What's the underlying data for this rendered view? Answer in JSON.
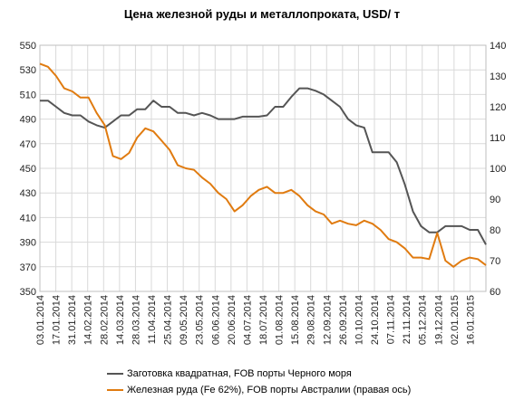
{
  "chart_data": {
    "type": "line",
    "title": "Цена железной руды и металлопроката, USD/ т",
    "left_axis": {
      "ylim": [
        350,
        550
      ],
      "ticks": [
        350,
        370,
        390,
        410,
        430,
        450,
        470,
        490,
        510,
        530,
        550
      ]
    },
    "right_axis": {
      "ylim": [
        60,
        140
      ],
      "ticks": [
        60,
        70,
        80,
        90,
        100,
        110,
        120,
        130,
        140
      ]
    },
    "x_tick_labels": [
      "03.01.2014",
      "17.01.2014",
      "31.01.2014",
      "14.02.2014",
      "28.02.2014",
      "14.03.2014",
      "28.03.2014",
      "11.04.2014",
      "25.04.2014",
      "09.05.2014",
      "23.05.2014",
      "06.06.2014",
      "20.06.2014",
      "04.07.2014",
      "18.07.2014",
      "01.08.2014",
      "15.08.2014",
      "29.08.2014",
      "12.09.2014",
      "26.09.2014",
      "10.10.2014",
      "24.10.2014",
      "07.11.2014",
      "21.11.2014",
      "05.12.2014",
      "19.12.2014",
      "02.01.2015",
      "16.01.2015"
    ],
    "grid": true,
    "legend_position": "bottom",
    "series": [
      {
        "name": "Заготовка квадратная, FOB порты Черного моря",
        "axis": "left",
        "color": "#555555",
        "values": [
          505,
          505,
          500,
          495,
          493,
          493,
          488,
          485,
          483,
          488,
          493,
          493,
          498,
          498,
          505,
          500,
          500,
          495,
          495,
          493,
          495,
          493,
          490,
          490,
          490,
          492,
          492,
          492,
          493,
          500,
          500,
          508,
          515,
          515,
          513,
          510,
          505,
          500,
          490,
          485,
          483,
          463,
          463,
          463,
          455,
          437,
          415,
          403,
          398,
          398,
          403,
          403,
          403,
          400,
          400,
          388
        ]
      },
      {
        "name": "Железная руда (Fe 62%), FOB порты Австралии (правая ось)",
        "axis": "right",
        "color": "#E07B10",
        "values": [
          134,
          133,
          130,
          126,
          125,
          123,
          123,
          118,
          114,
          104,
          103,
          105,
          110,
          113,
          112,
          109,
          106,
          101,
          100,
          99.5,
          97,
          95,
          92,
          90,
          86,
          88,
          91,
          93,
          94,
          92,
          92,
          93,
          91,
          88,
          86,
          85,
          82,
          83,
          82,
          81.5,
          83,
          82,
          80,
          77,
          76,
          74,
          71,
          71,
          70.5,
          79,
          70,
          68,
          70,
          71,
          70.5,
          68.5
        ]
      }
    ]
  }
}
